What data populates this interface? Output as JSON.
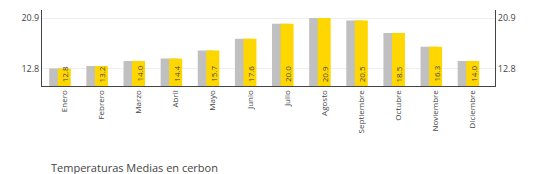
{
  "chart_data": {
    "type": "bar",
    "title": "Temperaturas Medias en cerbon",
    "categories": [
      "Enero",
      "Febrero",
      "Marzo",
      "Abril",
      "Mayo",
      "Junio",
      "Julio",
      "Agosto",
      "Septiembre",
      "Octubre",
      "Noviembre",
      "Diciembre"
    ],
    "series": [
      {
        "color": "#C0C0C0",
        "values": [
          12.8,
          13.2,
          14.0,
          14.4,
          15.7,
          17.6,
          20.0,
          20.9,
          20.5,
          18.5,
          16.3,
          14.0
        ]
      },
      {
        "color": "#FFD700",
        "axis": "y2",
        "values": [
          12.8,
          13.2,
          14.0,
          14.4,
          15.7,
          17.6,
          20.0,
          20.9,
          20.5,
          18.5,
          16.3,
          14.0
        ],
        "value_labels": [
          "12.8",
          "13.2",
          "14.0",
          "14.4",
          "15.7",
          "17.6",
          "20.0",
          "20.9",
          "20.5",
          "18.5",
          "16.3",
          "14.0"
        ]
      }
    ],
    "ylim": [
      10.0,
      22.2
    ],
    "yticks": [
      12.8,
      20.9
    ],
    "y2lim": [
      10.0,
      22.2
    ],
    "y2ticks": [
      12.8,
      20.9
    ],
    "grid": true,
    "data_labels": true
  }
}
